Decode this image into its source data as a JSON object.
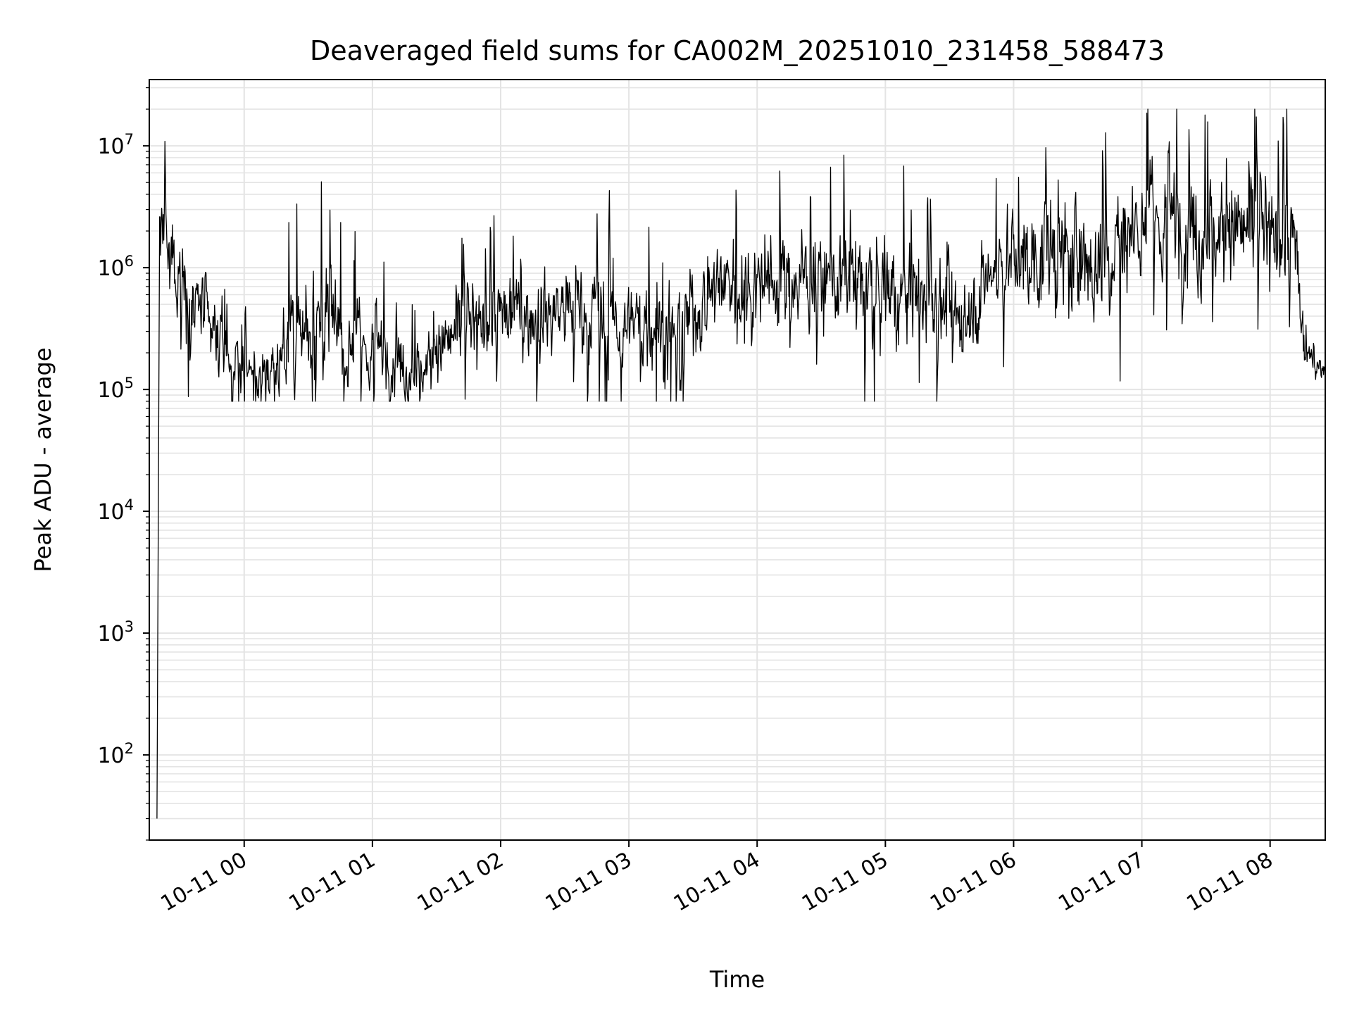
{
  "chart_data": {
    "type": "line",
    "title": "Deaveraged field sums for CA002M_20251010_231458_588473",
    "xlabel": "Time",
    "ylabel": "Peak ADU - average",
    "yscale": "log",
    "ylim": [
      20,
      35000000
    ],
    "xlim_hours": [
      -0.74,
      8.43
    ],
    "grid": true,
    "line_color": "#000000",
    "x_ticks": [
      {
        "hour": 0,
        "label": "10-11 00"
      },
      {
        "hour": 1,
        "label": "10-11 01"
      },
      {
        "hour": 2,
        "label": "10-11 02"
      },
      {
        "hour": 3,
        "label": "10-11 03"
      },
      {
        "hour": 4,
        "label": "10-11 04"
      },
      {
        "hour": 5,
        "label": "10-11 05"
      },
      {
        "hour": 6,
        "label": "10-11 06"
      },
      {
        "hour": 7,
        "label": "10-11 07"
      },
      {
        "hour": 8,
        "label": "10-11 08"
      }
    ],
    "y_ticks": [
      {
        "exp": 2,
        "base": "10",
        "sup": "2"
      },
      {
        "exp": 3,
        "base": "10",
        "sup": "3"
      },
      {
        "exp": 4,
        "base": "10",
        "sup": "4"
      },
      {
        "exp": 5,
        "base": "10",
        "sup": "5"
      },
      {
        "exp": 6,
        "base": "10",
        "sup": "6"
      },
      {
        "exp": 7,
        "base": "10",
        "sup": "7"
      }
    ],
    "series": [
      {
        "name": "deaveraged field sum",
        "start_hour": -0.68,
        "spike_to_hour": -0.66,
        "spike_low": 30,
        "envelope": [
          {
            "hour": -0.66,
            "median": 2000000,
            "spread": 0.35
          },
          {
            "hour": -0.45,
            "median": 700000,
            "spread": 0.45
          },
          {
            "hour": -0.15,
            "median": 180000,
            "spread": 0.3
          },
          {
            "hour": 0.15,
            "median": 120000,
            "spread": 0.35
          },
          {
            "hour": 0.5,
            "median": 400000,
            "spread": 0.6
          },
          {
            "hour": 0.8,
            "median": 250000,
            "spread": 0.45
          },
          {
            "hour": 1.05,
            "median": 200000,
            "spread": 0.35
          },
          {
            "hour": 1.35,
            "median": 140000,
            "spread": 0.3
          },
          {
            "hour": 1.7,
            "median": 320000,
            "spread": 0.4
          },
          {
            "hour": 2.0,
            "median": 400000,
            "spread": 0.45
          },
          {
            "hour": 2.5,
            "median": 450000,
            "spread": 0.45
          },
          {
            "hour": 3.0,
            "median": 350000,
            "spread": 0.45
          },
          {
            "hour": 3.4,
            "median": 300000,
            "spread": 0.4
          },
          {
            "hour": 3.7,
            "median": 800000,
            "spread": 0.45
          },
          {
            "hour": 4.2,
            "median": 800000,
            "spread": 0.45
          },
          {
            "hour": 4.7,
            "median": 800000,
            "spread": 0.45
          },
          {
            "hour": 5.2,
            "median": 600000,
            "spread": 0.45
          },
          {
            "hour": 5.6,
            "median": 400000,
            "spread": 0.4
          },
          {
            "hour": 5.9,
            "median": 1200000,
            "spread": 0.45
          },
          {
            "hour": 6.3,
            "median": 1200000,
            "spread": 0.55
          },
          {
            "hour": 6.6,
            "median": 1000000,
            "spread": 0.6
          },
          {
            "hour": 7.0,
            "median": 2500000,
            "spread": 0.55
          },
          {
            "hour": 7.5,
            "median": 2000000,
            "spread": 0.55
          },
          {
            "hour": 8.0,
            "median": 2000000,
            "spread": 0.55
          },
          {
            "hour": 8.2,
            "median": 1500000,
            "spread": 0.6
          },
          {
            "hour": 8.27,
            "median": 180000,
            "spread": 0.2
          },
          {
            "hour": 8.43,
            "median": 150000,
            "spread": 0.1
          }
        ],
        "samples_per_hour": 240,
        "clip_range": [
          80000,
          20000000
        ]
      }
    ]
  }
}
